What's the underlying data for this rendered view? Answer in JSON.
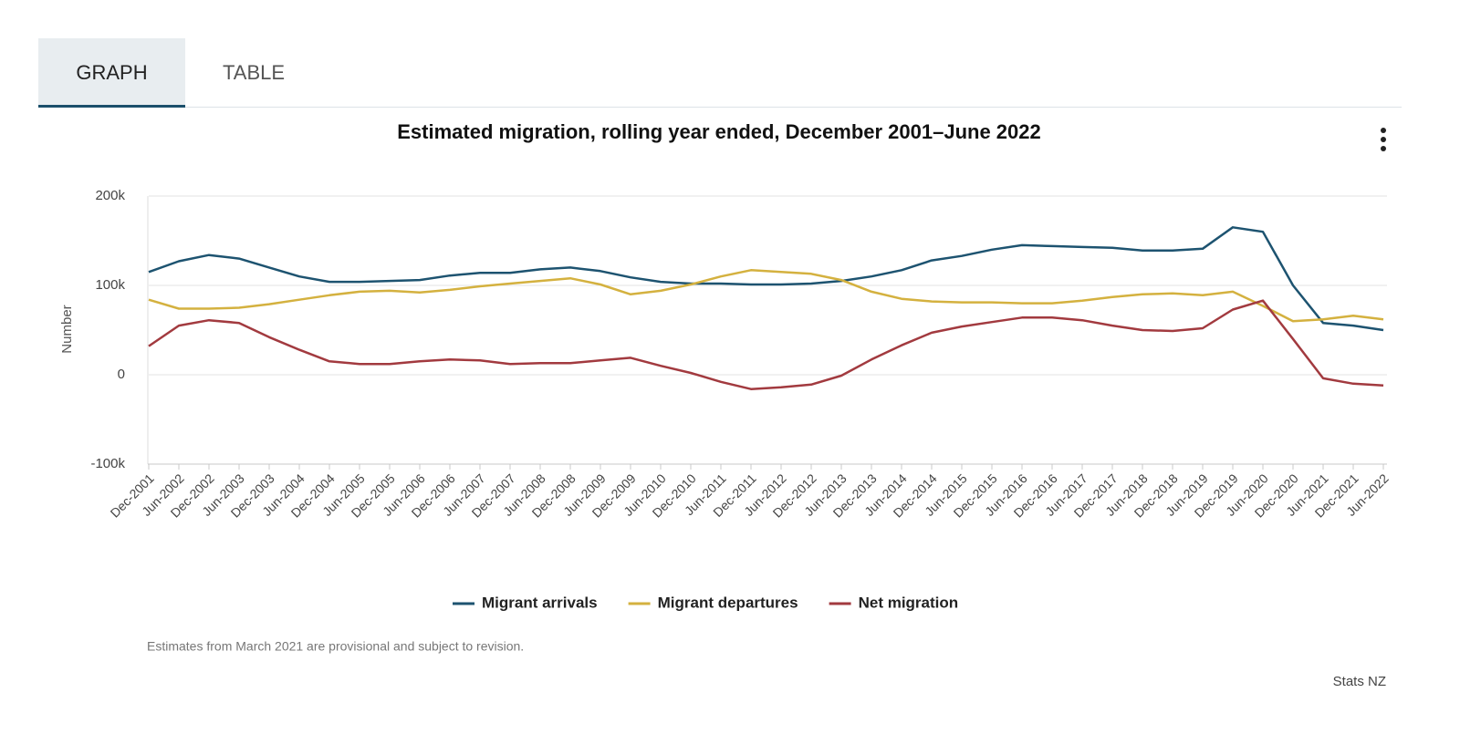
{
  "tabs": [
    "GRAPH",
    "TABLE"
  ],
  "chart_data": {
    "type": "line",
    "title": "Estimated migration, rolling year ended, December 2001–June 2022",
    "y_label": "Number",
    "categories": [
      "Dec-2001",
      "Jun-2002",
      "Dec-2002",
      "Jun-2003",
      "Dec-2003",
      "Jun-2004",
      "Dec-2004",
      "Jun-2005",
      "Dec-2005",
      "Jun-2006",
      "Dec-2006",
      "Jun-2007",
      "Dec-2007",
      "Jun-2008",
      "Dec-2008",
      "Jun-2009",
      "Dec-2009",
      "Jun-2010",
      "Dec-2010",
      "Jun-2011",
      "Dec-2011",
      "Jun-2012",
      "Dec-2012",
      "Jun-2013",
      "Dec-2013",
      "Jun-2014",
      "Dec-2014",
      "Jun-2015",
      "Dec-2015",
      "Jun-2016",
      "Dec-2016",
      "Jun-2017",
      "Dec-2017",
      "Jun-2018",
      "Dec-2018",
      "Jun-2019",
      "Dec-2019",
      "Jun-2020",
      "Dec-2020",
      "Jun-2021",
      "Dec-2021",
      "Jun-2022"
    ],
    "series": [
      {
        "name": "Migrant arrivals",
        "color": "#1d5370",
        "values": [
          115000,
          127000,
          134000,
          130000,
          120000,
          110000,
          104000,
          104000,
          105000,
          106000,
          111000,
          114000,
          114000,
          118000,
          120000,
          116000,
          109000,
          104000,
          102000,
          102000,
          101000,
          101000,
          102000,
          105000,
          110000,
          117000,
          128000,
          133000,
          140000,
          145000,
          144000,
          143000,
          142000,
          139000,
          139000,
          141000,
          165000,
          160000,
          100000,
          58000,
          55000,
          50000
        ]
      },
      {
        "name": "Migrant departures",
        "color": "#d4b13f",
        "values": [
          84000,
          74000,
          74000,
          75000,
          79000,
          84000,
          89000,
          93000,
          94000,
          92000,
          95000,
          99000,
          102000,
          105000,
          108000,
          101000,
          90000,
          94000,
          101000,
          110000,
          117000,
          115000,
          113000,
          106000,
          93000,
          85000,
          82000,
          81000,
          81000,
          80000,
          80000,
          83000,
          87000,
          90000,
          91000,
          89000,
          93000,
          77000,
          60000,
          62000,
          66000,
          62000
        ]
      },
      {
        "name": "Net migration",
        "color": "#a23a3f",
        "values": [
          32000,
          55000,
          61000,
          58000,
          42000,
          28000,
          15000,
          12000,
          12000,
          15000,
          17000,
          16000,
          12000,
          13000,
          13000,
          16000,
          19000,
          10000,
          2000,
          -8000,
          -16000,
          -14000,
          -11000,
          -1000,
          17000,
          33000,
          47000,
          54000,
          59000,
          64000,
          64000,
          61000,
          55000,
          50000,
          49000,
          52000,
          73000,
          83000,
          40000,
          -4000,
          -10000,
          -12000
        ]
      }
    ],
    "ylim": [
      -100000,
      200000
    ],
    "yticks": [
      {
        "value": -100000,
        "label": "-100k"
      },
      0,
      {
        "value": 100000,
        "label": "100k"
      },
      {
        "value": 200000,
        "label": "200k"
      }
    ],
    "grid": true,
    "note": "Estimates from March 2021 are provisional and subject to revision.",
    "credit": "Stats NZ"
  }
}
